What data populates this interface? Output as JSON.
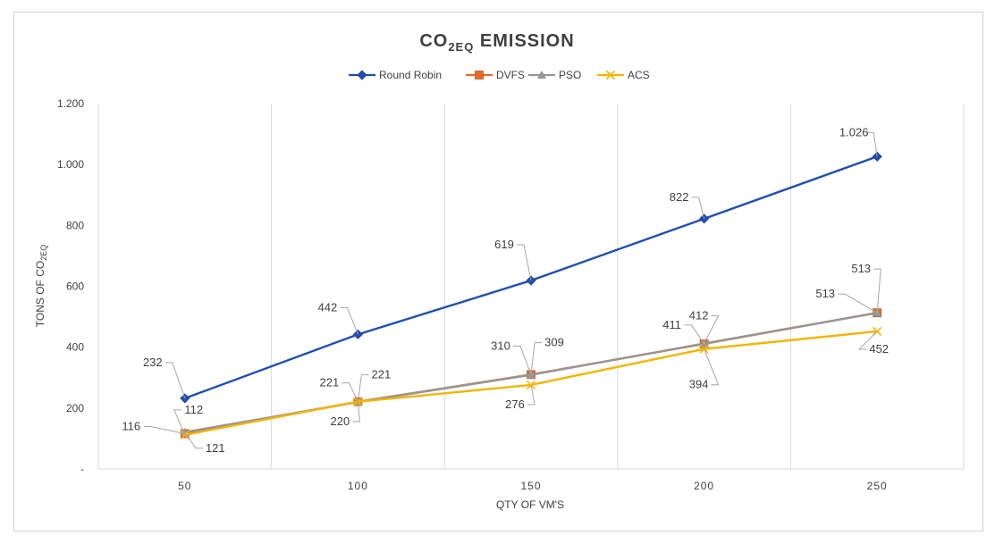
{
  "chart_data": {
    "type": "line",
    "title": "CO",
    "title_sub": "2EQ",
    "title_rest": " EMISSION",
    "xlabel": "QTY OF VM'S",
    "ylabel": "TONS OF CO",
    "ylabel_sub": "2EQ",
    "categories": [
      "50",
      "100",
      "150",
      "200",
      "250"
    ],
    "ylim": [
      0,
      1200
    ],
    "yticks": [
      0,
      200,
      400,
      600,
      800,
      1000,
      1200
    ],
    "ytick_labels": [
      "-",
      "200",
      "400",
      "600",
      "800",
      "1.000",
      "1.200"
    ],
    "grid": "vertical",
    "legend_position": "top",
    "series": [
      {
        "name": "Round Robin",
        "color": "#1f4eb4",
        "marker": "diamond",
        "values": [
          232,
          442,
          619,
          822,
          1026
        ],
        "labels": [
          "232",
          "442",
          "619",
          "822",
          "1.026"
        ]
      },
      {
        "name": "DVFS",
        "color": "#e46c2a",
        "marker": "square",
        "values": [
          116,
          221,
          310,
          411,
          513
        ],
        "labels": [
          "116",
          "221",
          "310",
          "411",
          "513"
        ]
      },
      {
        "name": "PSO",
        "color": "#969696",
        "marker": "triangle",
        "values": [
          121,
          220,
          309,
          412,
          513
        ],
        "labels": [
          "121",
          "220",
          "309",
          "412",
          "513"
        ]
      },
      {
        "name": "ACS",
        "color": "#f4b400",
        "marker": "x",
        "values": [
          112,
          221,
          276,
          394,
          452
        ],
        "labels": [
          "112",
          "221",
          "276",
          "394",
          "452"
        ]
      }
    ]
  }
}
